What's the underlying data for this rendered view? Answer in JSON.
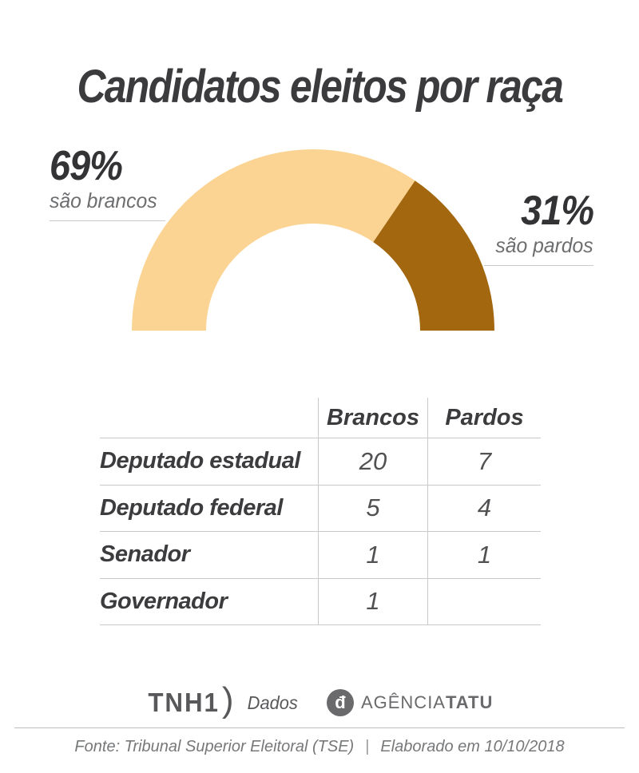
{
  "title": "Candidatos eleitos por raça",
  "chart_data": {
    "type": "pie",
    "variant": "semi-donut",
    "title": "Candidatos eleitos por raça",
    "unit": "%",
    "slices": [
      {
        "label": "são brancos",
        "value": 69,
        "color": "#fbd493"
      },
      {
        "label": "são pardos",
        "value": 31,
        "color": "#a2670f"
      }
    ],
    "callouts": {
      "left": {
        "pct": "69%",
        "label": "são brancos"
      },
      "right": {
        "pct": "31%",
        "label": "são pardos"
      }
    },
    "table": {
      "columns": [
        "Brancos",
        "Pardos"
      ],
      "rows": [
        {
          "label": "Deputado estadual",
          "values": [
            "20",
            "7"
          ]
        },
        {
          "label": "Deputado federal",
          "values": [
            "5",
            "4"
          ]
        },
        {
          "label": "Senador",
          "values": [
            "1",
            "1"
          ]
        },
        {
          "label": "Governador",
          "values": [
            "1",
            ""
          ]
        }
      ]
    }
  },
  "footer": {
    "tnh1_wordmark": "TNH1",
    "tnh1_paren": ")",
    "tnh1_suffix": "Dados",
    "tatu_glyph": "đ",
    "tatu_prefix": "AGÊNCIA",
    "tatu_bold": "TATU",
    "source": "Fonte: Tribunal Superior Eleitoral (TSE)",
    "separator": "|",
    "elaborated": "Elaborado em 10/10/2018"
  }
}
